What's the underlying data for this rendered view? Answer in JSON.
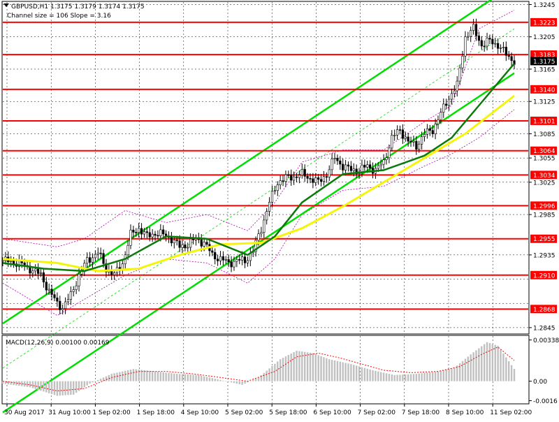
{
  "header": {
    "symbol_line": "GBPUSD,H1  1.3175 1.3179 1.3174 1.3175",
    "channel_line": "Channel size = 106 Slope = 3.16"
  },
  "macd_panel": {
    "label": "MACD(12,26,9) 0.00100 0.00169"
  },
  "colors": {
    "level": "#ff0000",
    "channel": "#00dd00",
    "ma_fast": "#0a7a0a",
    "ma_slow": "#f5f50a",
    "bands": "#b000b0",
    "candles": "#000000",
    "macd_hist": "#c0c0c0",
    "macd_signal": "#ff0000"
  },
  "chart_data": {
    "type": "candlestick",
    "symbol": "GBPUSD",
    "timeframe": "H1",
    "ylim": [
      1.2838,
      1.3248
    ],
    "y_ticks": [
      1.3245,
      1.3205,
      1.3165,
      1.3125,
      1.3085,
      1.3055,
      1.3025,
      1.2985,
      1.2955,
      1.2935,
      1.2905,
      1.2875,
      1.2845
    ],
    "x_labels": [
      "30 Aug 2017",
      "31 Aug 10:00",
      "1 Sep 02:00",
      "1 Sep 18:00",
      "4 Sep 10:00",
      "5 Sep 02:00",
      "5 Sep 18:00",
      "6 Sep 10:00",
      "7 Sep 02:00",
      "7 Sep 18:00",
      "8 Sep 10:00",
      "11 Sep 02:00"
    ],
    "levels": [
      1.3223,
      1.3183,
      1.314,
      1.3101,
      1.3064,
      1.3034,
      1.2996,
      1.2955,
      1.291,
      1.2868
    ],
    "level_labels": [
      "1.3223",
      "1.3183",
      "1.3140",
      "1.3101",
      "1.3064",
      "1.3034",
      "1.2996",
      "1.2955",
      "1.2910",
      "1.2868"
    ],
    "current_price": "1.3175",
    "close_path": [
      [
        0,
        1.2928
      ],
      [
        6,
        1.2925
      ],
      [
        10,
        1.2918
      ],
      [
        14,
        1.291
      ],
      [
        17,
        1.289
      ],
      [
        20,
        1.2875
      ],
      [
        22,
        1.287
      ],
      [
        25,
        1.2885
      ],
      [
        28,
        1.291
      ],
      [
        31,
        1.2928
      ],
      [
        35,
        1.2938
      ],
      [
        38,
        1.2918
      ],
      [
        41,
        1.291
      ],
      [
        44,
        1.2925
      ],
      [
        47,
        1.296
      ],
      [
        50,
        1.2968
      ],
      [
        53,
        1.2958
      ],
      [
        56,
        1.2962
      ],
      [
        59,
        1.296
      ],
      [
        62,
        1.2955
      ],
      [
        65,
        1.2945
      ],
      [
        68,
        1.2948
      ],
      [
        71,
        1.2955
      ],
      [
        74,
        1.295
      ],
      [
        77,
        1.2935
      ],
      [
        80,
        1.293
      ],
      [
        83,
        1.2925
      ],
      [
        86,
        1.2928
      ],
      [
        89,
        1.2928
      ],
      [
        92,
        1.294
      ],
      [
        95,
        1.2968
      ],
      [
        98,
        1.3
      ],
      [
        101,
        1.3025
      ],
      [
        104,
        1.303
      ],
      [
        107,
        1.3032
      ],
      [
        110,
        1.3035
      ],
      [
        113,
        1.303
      ],
      [
        116,
        1.3025
      ],
      [
        119,
        1.3035
      ],
      [
        122,
        1.3055
      ],
      [
        125,
        1.3045
      ],
      [
        128,
        1.304
      ],
      [
        131,
        1.304
      ],
      [
        134,
        1.3045
      ],
      [
        137,
        1.304
      ],
      [
        140,
        1.305
      ],
      [
        143,
        1.308
      ],
      [
        146,
        1.309
      ],
      [
        149,
        1.3075
      ],
      [
        152,
        1.307
      ],
      [
        155,
        1.3085
      ],
      [
        158,
        1.309
      ],
      [
        161,
        1.311
      ],
      [
        164,
        1.313
      ],
      [
        167,
        1.3145
      ],
      [
        170,
        1.3205
      ],
      [
        173,
        1.3215
      ],
      [
        176,
        1.3195
      ],
      [
        179,
        1.32
      ],
      [
        182,
        1.3195
      ],
      [
        185,
        1.3183
      ],
      [
        188,
        1.3175
      ]
    ],
    "ma_fast": [
      [
        0,
        1.2925
      ],
      [
        15,
        1.2918
      ],
      [
        30,
        1.2915
      ],
      [
        45,
        1.293
      ],
      [
        60,
        1.2958
      ],
      [
        75,
        1.2955
      ],
      [
        90,
        1.2935
      ],
      [
        100,
        1.2958
      ],
      [
        110,
        1.3
      ],
      [
        125,
        1.3035
      ],
      [
        140,
        1.304
      ],
      [
        155,
        1.3058
      ],
      [
        165,
        1.308
      ],
      [
        175,
        1.312
      ],
      [
        188,
        1.3172
      ]
    ],
    "ma_slow": [
      [
        0,
        1.293
      ],
      [
        20,
        1.2925
      ],
      [
        35,
        1.2915
      ],
      [
        50,
        1.2918
      ],
      [
        65,
        1.2935
      ],
      [
        80,
        1.2948
      ],
      [
        95,
        1.295
      ],
      [
        110,
        1.2968
      ],
      [
        125,
        1.2995
      ],
      [
        140,
        1.3025
      ],
      [
        155,
        1.3055
      ],
      [
        170,
        1.3085
      ],
      [
        188,
        1.3132
      ]
    ],
    "channel": {
      "lower": [
        [
          0,
          1.274
        ],
        [
          188,
          1.316
        ]
      ],
      "upper": [
        [
          0,
          1.285
        ],
        [
          188,
          1.327
        ]
      ],
      "mid": [
        [
          0,
          1.2795
        ],
        [
          188,
          1.3215
        ]
      ]
    },
    "bands_upper": [
      [
        0,
        1.2955
      ],
      [
        20,
        1.2945
      ],
      [
        30,
        1.2955
      ],
      [
        45,
        1.299
      ],
      [
        60,
        1.2975
      ],
      [
        75,
        1.2985
      ],
      [
        90,
        1.2965
      ],
      [
        100,
        1.3
      ],
      [
        110,
        1.305
      ],
      [
        125,
        1.3065
      ],
      [
        140,
        1.3065
      ],
      [
        155,
        1.31
      ],
      [
        165,
        1.312
      ],
      [
        175,
        1.3215
      ],
      [
        188,
        1.3238
      ]
    ],
    "bands_lower": [
      [
        0,
        1.29
      ],
      [
        20,
        1.286
      ],
      [
        30,
        1.288
      ],
      [
        45,
        1.291
      ],
      [
        60,
        1.293
      ],
      [
        75,
        1.2925
      ],
      [
        90,
        1.29
      ],
      [
        100,
        1.293
      ],
      [
        110,
        1.2985
      ],
      [
        125,
        1.3015
      ],
      [
        140,
        1.302
      ],
      [
        155,
        1.3045
      ],
      [
        165,
        1.306
      ],
      [
        175,
        1.308
      ],
      [
        188,
        1.3115
      ]
    ],
    "macd": {
      "label": "MACD(12,26,9)",
      "main_value": 0.001,
      "signal_value": 0.00169,
      "ylim": [
        -0.0018,
        0.0037
      ],
      "y_ticks": [
        0.00338,
        0.0,
        -0.0016
      ],
      "y_tick_labels": [
        "0.00338",
        "0.00",
        "-0.0016"
      ],
      "hist_path": [
        [
          0,
          -0.0002
        ],
        [
          10,
          -0.0005
        ],
        [
          20,
          -0.0012
        ],
        [
          26,
          -0.0011
        ],
        [
          32,
          -0.0002
        ],
        [
          40,
          0.0006
        ],
        [
          48,
          0.001
        ],
        [
          56,
          0.0008
        ],
        [
          64,
          0.0006
        ],
        [
          72,
          0.0005
        ],
        [
          80,
          0.0001
        ],
        [
          88,
          -0.0003
        ],
        [
          94,
          0.0003
        ],
        [
          102,
          0.0018
        ],
        [
          108,
          0.0025
        ],
        [
          114,
          0.0023
        ],
        [
          120,
          0.0018
        ],
        [
          128,
          0.0014
        ],
        [
          136,
          0.0009
        ],
        [
          144,
          0.0005
        ],
        [
          152,
          0.0006
        ],
        [
          160,
          0.0008
        ],
        [
          166,
          0.0011
        ],
        [
          172,
          0.0022
        ],
        [
          178,
          0.0032
        ],
        [
          182,
          0.0029
        ],
        [
          188,
          0.001
        ]
      ],
      "signal_path": [
        [
          0,
          0.0
        ],
        [
          10,
          -0.0003
        ],
        [
          20,
          -0.0008
        ],
        [
          30,
          -0.0006
        ],
        [
          40,
          0.0003
        ],
        [
          50,
          0.0008
        ],
        [
          60,
          0.0008
        ],
        [
          70,
          0.0006
        ],
        [
          80,
          0.0003
        ],
        [
          90,
          0.0
        ],
        [
          100,
          0.0008
        ],
        [
          108,
          0.002
        ],
        [
          116,
          0.0023
        ],
        [
          124,
          0.0019
        ],
        [
          132,
          0.0014
        ],
        [
          140,
          0.0009
        ],
        [
          150,
          0.0007
        ],
        [
          160,
          0.0008
        ],
        [
          168,
          0.0012
        ],
        [
          176,
          0.0022
        ],
        [
          182,
          0.0028
        ],
        [
          188,
          0.0017
        ]
      ]
    }
  }
}
